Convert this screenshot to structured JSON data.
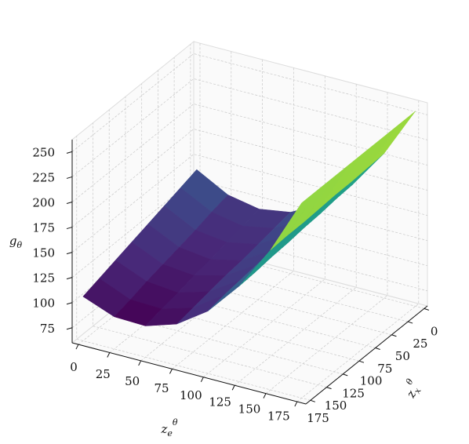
{
  "chart_data": {
    "type": "surface",
    "xlabel": {
      "base": "z",
      "sub": "e",
      "sup": "θ"
    },
    "ylabel": {
      "base": "z",
      "sub": "x",
      "sup": "θ"
    },
    "zlabel": {
      "base": "g",
      "sub": "θ"
    },
    "colormap": "viridis",
    "grid": true,
    "x": [
      0,
      25,
      50,
      75,
      100,
      125,
      150,
      175
    ],
    "y": [
      0,
      25,
      50,
      75,
      100,
      125,
      150,
      175
    ],
    "z": [
      [
        139,
        122,
        116,
        121,
        137,
        165,
        204,
        254
      ],
      [
        134,
        118,
        112,
        118,
        135,
        164,
        203,
        254
      ],
      [
        129,
        113,
        109,
        115,
        133,
        162,
        202,
        254
      ],
      [
        124,
        109,
        105,
        112,
        131,
        161,
        202,
        254
      ],
      [
        119,
        105,
        102,
        110,
        129,
        159,
        201,
        254
      ],
      [
        114,
        101,
        98,
        107,
        127,
        158,
        200,
        254
      ],
      [
        109,
        96,
        95,
        104,
        125,
        156,
        200,
        254
      ],
      [
        104,
        92,
        91,
        101,
        122,
        155,
        199,
        254
      ]
    ],
    "xlim": [
      -5,
      182
    ],
    "ylim": [
      -5,
      182
    ],
    "zlim": [
      60,
      262
    ],
    "xticks": [
      0,
      25,
      50,
      75,
      100,
      125,
      150,
      175
    ],
    "yticks": [
      0,
      25,
      50,
      75,
      100,
      125,
      150,
      175
    ],
    "zticks": [
      75,
      100,
      125,
      150,
      175,
      200,
      225,
      250
    ]
  }
}
